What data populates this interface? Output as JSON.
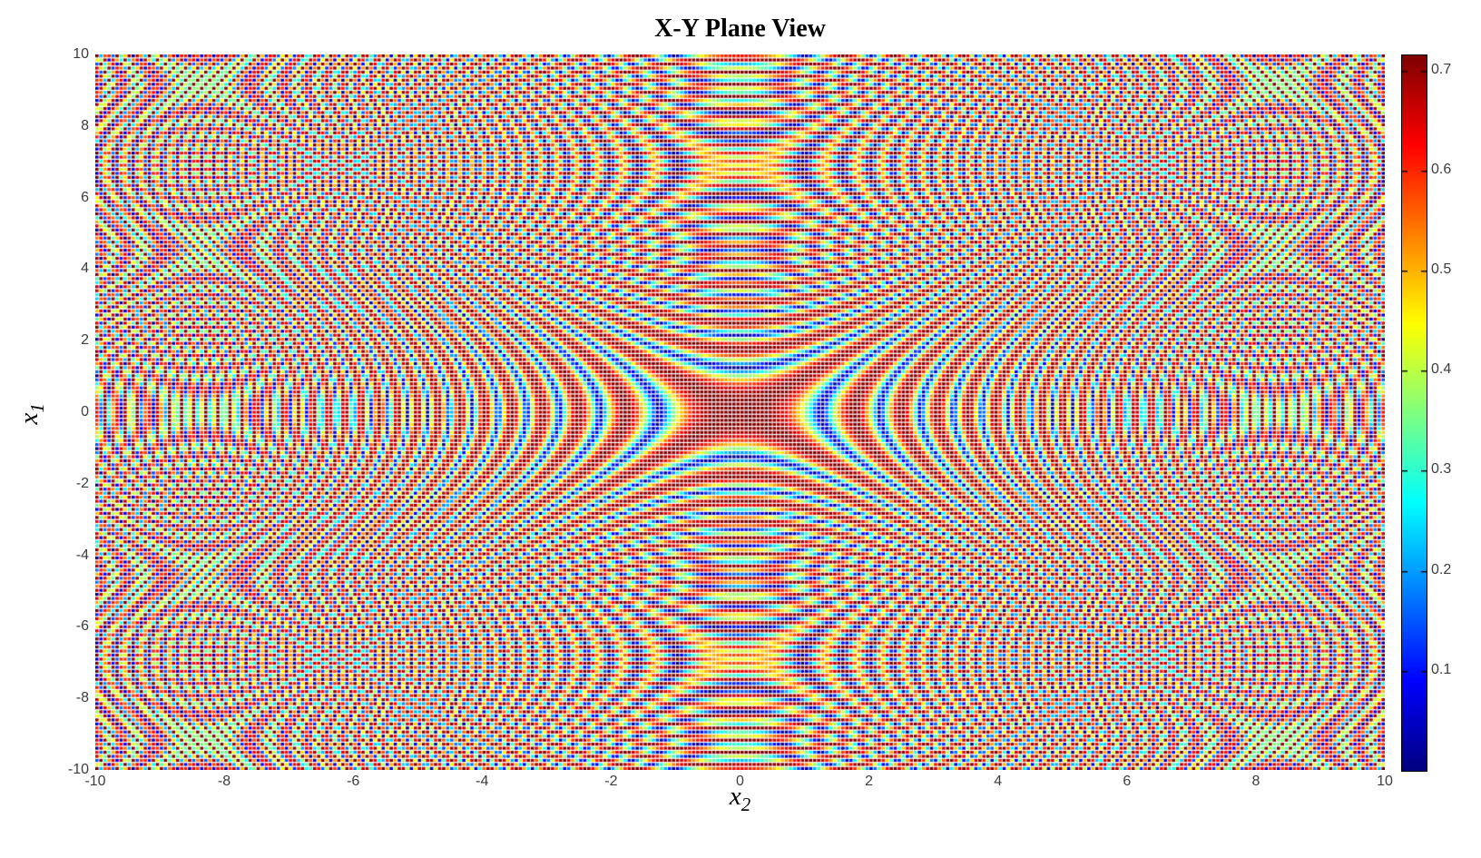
{
  "title": "X-Y Plane View",
  "axes": {
    "xlabel": {
      "base": "x",
      "sub": "2"
    },
    "ylabel": {
      "base": "x",
      "sub": "1"
    },
    "x_ticks": [
      "-10",
      "-8",
      "-6",
      "-4",
      "-2",
      "0",
      "2",
      "4",
      "6",
      "8",
      "10"
    ],
    "y_ticks": [
      "-10",
      "-8",
      "-6",
      "-4",
      "-2",
      "0",
      "2",
      "4",
      "6",
      "8",
      "10"
    ]
  },
  "colorbar": {
    "tick_labels": [
      "0.1",
      "0.2",
      "0.3",
      "0.4",
      "0.5",
      "0.6",
      "0.7"
    ]
  },
  "colors": {
    "background": "#ffffff",
    "axis_text": "#3d3d3d",
    "title_text": "#000000",
    "frame": "#000000"
  },
  "chart_data": {
    "type": "heatmap",
    "title": "X-Y Plane View",
    "xlabel": "x_2",
    "ylabel": "x_1",
    "x_range": [
      -10,
      10
    ],
    "y_range": [
      -10,
      10
    ],
    "z_min": 0,
    "z_max": 0.715,
    "z_function": "0.715 * abs(cos(x1^2 - x2^2))",
    "colormap": "jet",
    "colormap_anchors": [
      "#000080",
      "#0000ff",
      "#00ffff",
      "#ffff00",
      "#ff0000",
      "#800000"
    ],
    "x_tick_values": [
      -10,
      -8,
      -6,
      -4,
      -2,
      0,
      2,
      4,
      6,
      8,
      10
    ],
    "y_tick_values": [
      -10,
      -8,
      -6,
      -4,
      -2,
      0,
      2,
      4,
      6,
      8,
      10
    ],
    "colorbar_tick_values": [
      0.1,
      0.2,
      0.3,
      0.4,
      0.5,
      0.6,
      0.7
    ],
    "grid": {
      "nx": 320,
      "ny": 177,
      "marker_w_px": 3.6,
      "marker_h_px": 3.2
    },
    "legend": "none",
    "grid_lines": "off"
  }
}
